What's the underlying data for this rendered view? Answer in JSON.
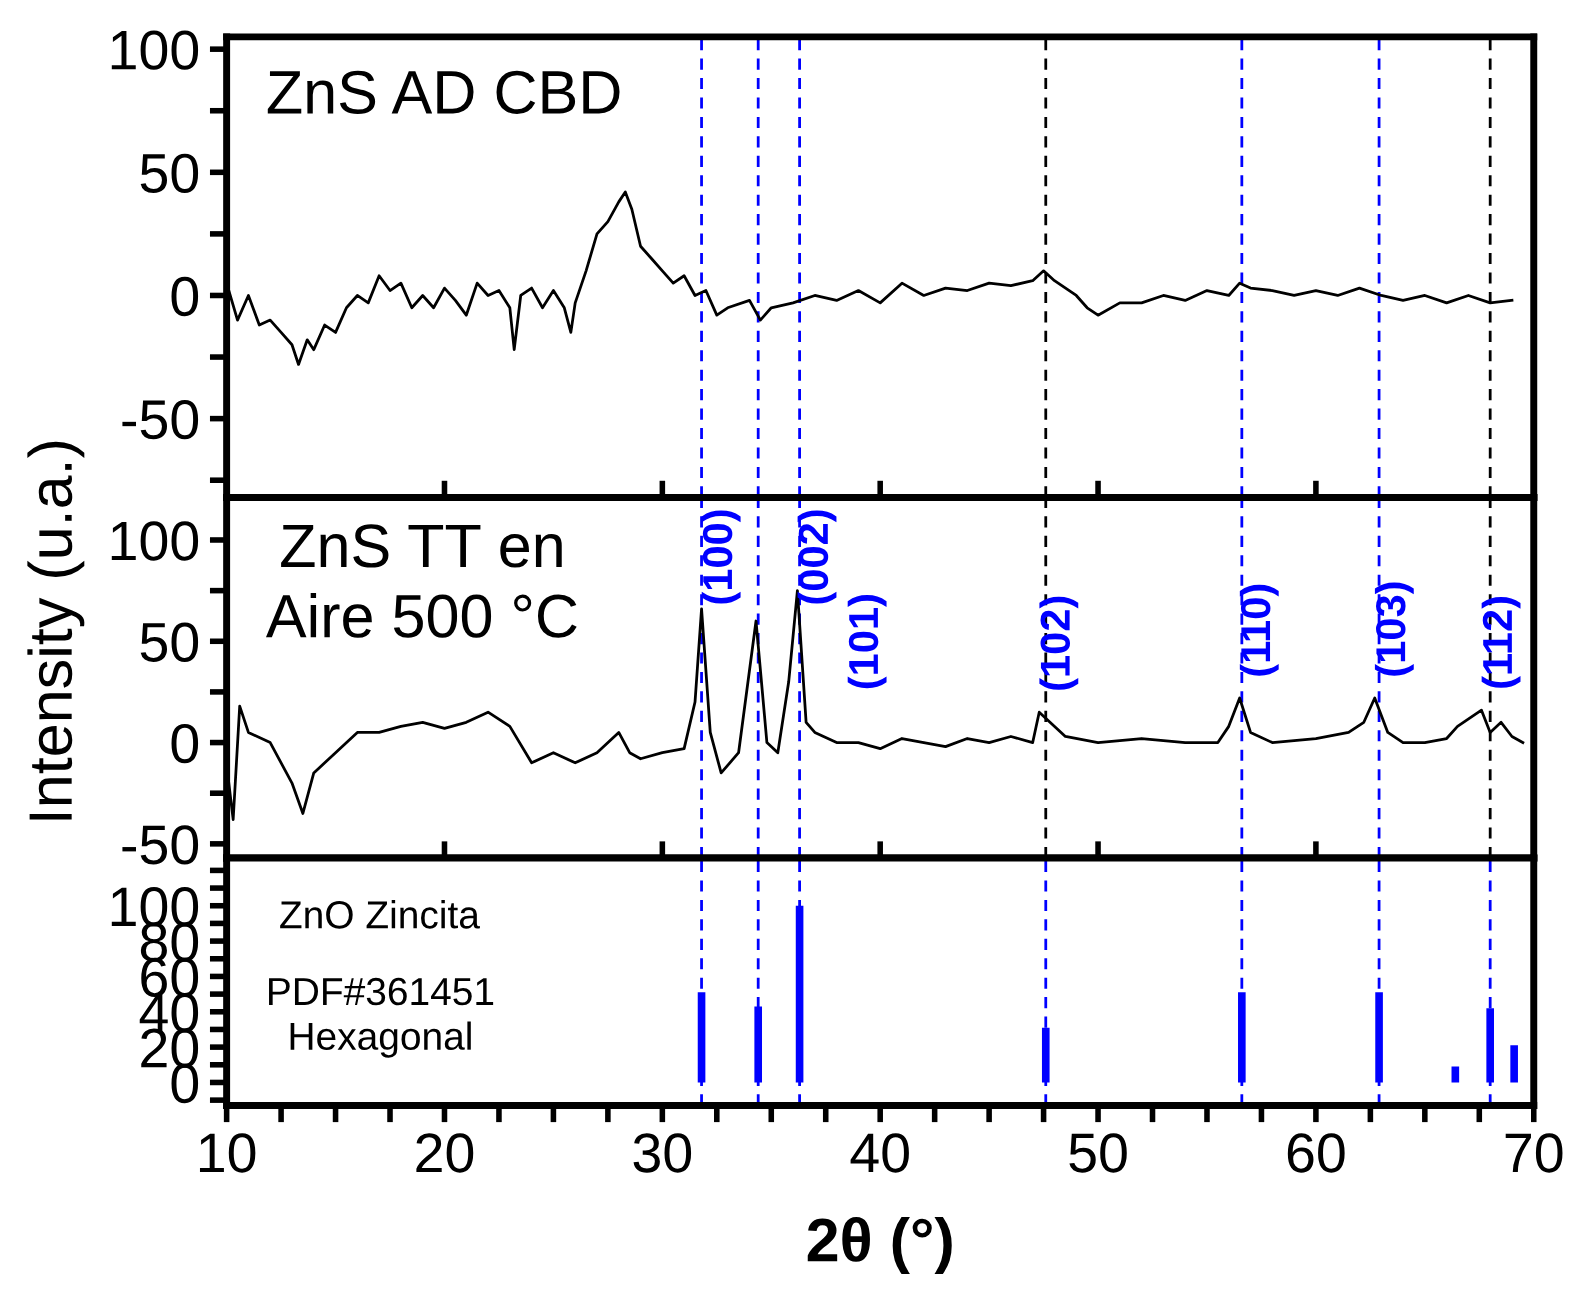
{
  "chart_data": [
    {
      "type": "line",
      "annotations": [
        "ZnS AD CBD"
      ],
      "xlim": [
        10,
        70
      ],
      "xticks": [
        {
          "value": 10,
          "label": null
        },
        {
          "value": 20,
          "label": null
        },
        {
          "value": 30,
          "label": null
        },
        {
          "value": 40,
          "label": null
        },
        {
          "value": 50,
          "label": null
        },
        {
          "value": 60,
          "label": null
        },
        {
          "value": 70,
          "label": null
        }
      ],
      "ylim": [
        -82,
        105
      ],
      "yticks": [
        {
          "value": -75,
          "label": null
        },
        -50,
        {
          "value": -25,
          "label": null
        },
        0,
        {
          "value": 25,
          "label": null
        },
        50,
        {
          "value": 75,
          "label": null
        },
        100
      ],
      "tick_labels": "y",
      "x": [
        10,
        10.5,
        11,
        11.5,
        12,
        12.5,
        13,
        13.3,
        13.7,
        14,
        14.5,
        15,
        15.5,
        16,
        16.5,
        17,
        17.5,
        18,
        18.5,
        19,
        19.5,
        20,
        20.5,
        21,
        21.5,
        22,
        22.5,
        23,
        23.2,
        23.5,
        24,
        24.5,
        25,
        25.5,
        25.8,
        26,
        26.5,
        27,
        27.5,
        28,
        28.3,
        28.6,
        29,
        29.5,
        30,
        30.5,
        31,
        31.5,
        32,
        32.5,
        33,
        34,
        34.5,
        35,
        36,
        37,
        38,
        39,
        40,
        41,
        42,
        43,
        44,
        45,
        46,
        47,
        47.5,
        48,
        49,
        49.5,
        50,
        51,
        52,
        53,
        54,
        55,
        56,
        56.5,
        57,
        58,
        59,
        60,
        61,
        62,
        63,
        64,
        65,
        66,
        67,
        68,
        69
      ],
      "series": [
        {
          "color": "#000000",
          "values": [
            5,
            -10,
            0,
            -12,
            -10,
            -15,
            -20,
            -28,
            -18,
            -22,
            -12,
            -15,
            -5,
            0,
            -3,
            8,
            2,
            5,
            -5,
            0,
            -5,
            3,
            -2,
            -8,
            5,
            0,
            2,
            -5,
            -22,
            0,
            3,
            -5,
            2,
            -5,
            -15,
            -3,
            10,
            25,
            30,
            38,
            42,
            35,
            20,
            15,
            10,
            5,
            8,
            0,
            2,
            -8,
            -5,
            -2,
            -10,
            -5,
            -3,
            0,
            -2,
            2,
            -3,
            5,
            0,
            3,
            2,
            5,
            4,
            6,
            10,
            6,
            0,
            -5,
            -8,
            -3,
            -3,
            0,
            -2,
            2,
            0,
            5,
            3,
            2,
            0,
            2,
            0,
            3,
            0,
            -2,
            0,
            -3,
            0,
            -3,
            -2
          ]
        }
      ],
      "ref_lines": [
        {
          "axis": "x",
          "value": 31.8,
          "color": "#0000ff",
          "line_style": "dashed"
        },
        {
          "axis": "x",
          "value": 34.4,
          "color": "#0000ff",
          "line_style": "dashed"
        },
        {
          "axis": "x",
          "value": 36.3,
          "color": "#0000ff",
          "line_style": "dashed"
        },
        {
          "axis": "x",
          "value": 47.6,
          "color": "#000000",
          "line_style": "dashed"
        },
        {
          "axis": "x",
          "value": 56.6,
          "color": "#0000ff",
          "line_style": "dashed"
        },
        {
          "axis": "x",
          "value": 62.9,
          "color": "#0000ff",
          "line_style": "dashed"
        },
        {
          "axis": "x",
          "value": 68.0,
          "color": "#000000",
          "line_style": "dashed"
        }
      ]
    },
    {
      "type": "line",
      "ylabel": "Intensity (u.a.)",
      "annotations": [
        "ZnS TT en\nAire 500 °C",
        "(101)",
        {
          "text": "(100)",
          "x": 31.8,
          "y": 66
        },
        {
          "text": "(002)",
          "x": 36.2,
          "y": 75
        },
        {
          "text": "(102)",
          "x": 47.3,
          "y": 15
        },
        {
          "text": "(110)",
          "x": 56.5,
          "y": 22
        },
        {
          "text": "(103)",
          "x": 62.7,
          "y": 22
        },
        {
          "text": "(112)",
          "x": 67.6,
          "y": 16
        }
      ],
      "xlim": [
        10,
        70
      ],
      "xticks": [
        {
          "value": 10,
          "label": null
        },
        {
          "value": 20,
          "label": null
        },
        {
          "value": 30,
          "label": null
        },
        {
          "value": 40,
          "label": null
        },
        {
          "value": 50,
          "label": null
        },
        {
          "value": 60,
          "label": null
        },
        {
          "value": 70,
          "label": null
        }
      ],
      "ylim": [
        -57,
        121
      ],
      "yticks": [
        -50,
        {
          "value": -25,
          "label": null
        },
        0,
        {
          "value": 25,
          "label": null
        },
        50,
        {
          "value": 75,
          "label": null
        },
        100
      ],
      "tick_labels": "y",
      "x": [
        10,
        10.3,
        10.6,
        11,
        12,
        12.5,
        13,
        13.5,
        14,
        15,
        16,
        17,
        18,
        19,
        20,
        21,
        22,
        23,
        24,
        25,
        26,
        27,
        28,
        28.5,
        29,
        30,
        31,
        31.5,
        31.8,
        32.2,
        32.7,
        33.5,
        34.3,
        34.8,
        35.3,
        35.8,
        36.2,
        36.6,
        37,
        38,
        39,
        40,
        41,
        42,
        43,
        44,
        45,
        46,
        47,
        47.3,
        48.5,
        50,
        52,
        54,
        55.5,
        56,
        56.5,
        57,
        58,
        60,
        61.5,
        62.2,
        62.7,
        63.3,
        64,
        65,
        66,
        66.5,
        67.6,
        68,
        68.5,
        69,
        69.5
      ],
      "series": [
        {
          "color": "#000000",
          "values": [
            -11,
            -38,
            18,
            5,
            0,
            -10,
            -20,
            -35,
            -15,
            -5,
            5,
            5,
            8,
            10,
            7,
            10,
            15,
            8,
            -10,
            -5,
            -10,
            -5,
            5,
            -5,
            -8,
            -5,
            -3,
            20,
            66,
            5,
            -15,
            -5,
            60,
            0,
            -5,
            30,
            75,
            10,
            5,
            0,
            0,
            -3,
            2,
            0,
            -2,
            2,
            0,
            3,
            0,
            15,
            3,
            0,
            2,
            0,
            0,
            8,
            22,
            5,
            0,
            2,
            5,
            10,
            22,
            5,
            0,
            0,
            2,
            8,
            16,
            5,
            10,
            3,
            0
          ]
        }
      ],
      "ref_lines": [
        {
          "axis": "x",
          "value": 31.8,
          "color": "#0000ff",
          "line_style": "dashed"
        },
        {
          "axis": "x",
          "value": 34.4,
          "color": "#0000ff",
          "line_style": "dashed"
        },
        {
          "axis": "x",
          "value": 36.3,
          "color": "#0000ff",
          "line_style": "dashed"
        },
        {
          "axis": "x",
          "value": 47.6,
          "color": "#000000",
          "line_style": "dashed"
        },
        {
          "axis": "x",
          "value": 56.6,
          "color": "#0000ff",
          "line_style": "dashed"
        },
        {
          "axis": "x",
          "value": 62.9,
          "color": "#0000ff",
          "line_style": "dashed"
        },
        {
          "axis": "x",
          "value": 68.0,
          "color": "#000000",
          "line_style": "dashed"
        }
      ]
    },
    {
      "type": "bar",
      "xlabel": "2θ (°)",
      "annotations": [
        "ZnO Zincita",
        "PDF#361451\nHexagonal"
      ],
      "xlim": [
        10,
        70
      ],
      "xticks": [
        10,
        {
          "value": 12.5,
          "label": null
        },
        {
          "value": 15,
          "label": null
        },
        {
          "value": 17.5,
          "label": null
        },
        20,
        {
          "value": 22.5,
          "label": null
        },
        {
          "value": 25,
          "label": null
        },
        {
          "value": 27.5,
          "label": null
        },
        30,
        {
          "value": 32.5,
          "label": null
        },
        {
          "value": 35,
          "label": null
        },
        {
          "value": 37.5,
          "label": null
        },
        40,
        {
          "value": 42.5,
          "label": null
        },
        {
          "value": 45,
          "label": null
        },
        {
          "value": 47.5,
          "label": null
        },
        50,
        {
          "value": 52.5,
          "label": null
        },
        {
          "value": 55,
          "label": null
        },
        {
          "value": 57.5,
          "label": null
        },
        60,
        {
          "value": 62.5,
          "label": null
        },
        {
          "value": 65,
          "label": null
        },
        {
          "value": 67.5,
          "label": null
        },
        70
      ],
      "ylim": [
        -13,
        127
      ],
      "yticks": [
        {
          "value": -10,
          "label": null
        },
        0,
        {
          "value": 10,
          "label": null
        },
        20,
        {
          "value": 30,
          "label": null
        },
        40,
        {
          "value": 50,
          "label": null
        },
        60,
        {
          "value": 70,
          "label": null
        },
        80,
        {
          "value": 90,
          "label": null
        },
        100,
        {
          "value": 110,
          "label": null
        },
        {
          "value": 120,
          "label": null
        }
      ],
      "x": [
        31.8,
        34.4,
        36.3,
        47.6,
        56.6,
        62.9,
        66.4,
        68.0,
        69.1
      ],
      "series": [
        {
          "color": "#0000ff",
          "values": [
            51,
            43,
            100,
            31,
            51,
            51,
            9,
            42,
            21
          ]
        }
      ],
      "ref_lines": [
        {
          "axis": "x",
          "value": 31.8,
          "color": "#0000ff",
          "line_style": "dashed"
        },
        {
          "axis": "x",
          "value": 34.4,
          "color": "#0000ff",
          "line_style": "dashed"
        },
        {
          "axis": "x",
          "value": 36.3,
          "color": "#0000ff",
          "line_style": "dashed"
        },
        {
          "axis": "x",
          "value": 47.6,
          "color": "#0000ff",
          "line_style": "dashed"
        },
        {
          "axis": "x",
          "value": 56.6,
          "color": "#0000ff",
          "line_style": "dashed"
        },
        {
          "axis": "x",
          "value": 62.9,
          "color": "#0000ff",
          "line_style": "dashed"
        },
        {
          "axis": "x",
          "value": 68.0,
          "color": "#0000ff",
          "line_style": "dashed"
        }
      ]
    }
  ]
}
